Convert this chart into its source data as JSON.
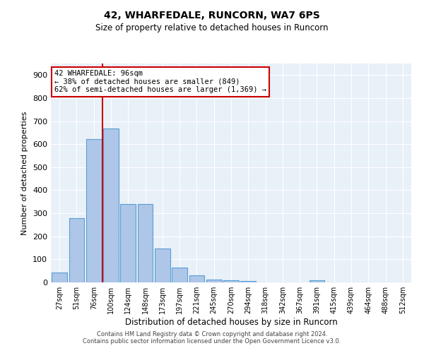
{
  "title1": "42, WHARFEDALE, RUNCORN, WA7 6PS",
  "title2": "Size of property relative to detached houses in Runcorn",
  "xlabel": "Distribution of detached houses by size in Runcorn",
  "ylabel": "Number of detached properties",
  "categories": [
    "27sqm",
    "51sqm",
    "76sqm",
    "100sqm",
    "124sqm",
    "148sqm",
    "173sqm",
    "197sqm",
    "221sqm",
    "245sqm",
    "270sqm",
    "294sqm",
    "318sqm",
    "342sqm",
    "367sqm",
    "391sqm",
    "415sqm",
    "439sqm",
    "464sqm",
    "488sqm",
    "512sqm"
  ],
  "values": [
    43,
    280,
    622,
    668,
    341,
    341,
    148,
    65,
    30,
    12,
    8,
    7,
    0,
    0,
    0,
    10,
    0,
    0,
    0,
    0,
    0
  ],
  "bar_color": "#aec6e8",
  "bar_edge_color": "#5a9fd4",
  "vline_x": 2.5,
  "vline_color": "#cc0000",
  "annotation_text": "42 WHARFEDALE: 96sqm\n← 38% of detached houses are smaller (849)\n62% of semi-detached houses are larger (1,369) →",
  "annotation_box_color": "#ffffff",
  "annotation_box_edgecolor": "#cc0000",
  "ylim": [
    0,
    950
  ],
  "yticks": [
    0,
    100,
    200,
    300,
    400,
    500,
    600,
    700,
    800,
    900
  ],
  "bg_color": "#e8f0f8",
  "footer1": "Contains HM Land Registry data © Crown copyright and database right 2024.",
  "footer2": "Contains public sector information licensed under the Open Government Licence v3.0."
}
